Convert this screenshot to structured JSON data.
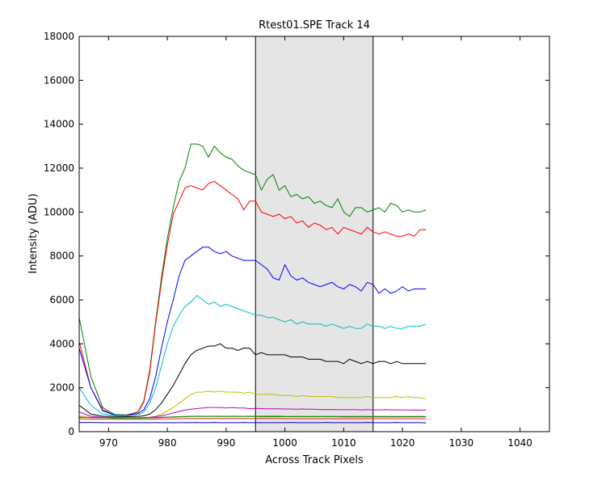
{
  "chart_data": {
    "type": "line",
    "title": "Rtest01.SPE   Track 14",
    "xlabel": "Across Track Pixels",
    "ylabel": "Intensity (ADU)",
    "xlim": [
      965,
      1045
    ],
    "ylim": [
      0,
      18000
    ],
    "xticks": [
      970,
      980,
      990,
      1000,
      1010,
      1020,
      1030,
      1040
    ],
    "yticks": [
      0,
      2000,
      4000,
      6000,
      8000,
      10000,
      12000,
      14000,
      16000,
      18000
    ],
    "grid": false,
    "legend": "none",
    "highlight_band": {
      "x0": 995,
      "x1": 1015,
      "color": "#e5e5e5"
    },
    "x": [
      965,
      967,
      969,
      971,
      973,
      975,
      976,
      977,
      978,
      979,
      980,
      981,
      982,
      983,
      984,
      985,
      986,
      987,
      988,
      989,
      990,
      991,
      992,
      993,
      994,
      995,
      996,
      997,
      998,
      999,
      1000,
      1001,
      1002,
      1003,
      1004,
      1005,
      1006,
      1007,
      1008,
      1009,
      1010,
      1011,
      1012,
      1013,
      1014,
      1015,
      1016,
      1017,
      1018,
      1019,
      1020,
      1021,
      1022,
      1023,
      1024
    ],
    "series": [
      {
        "color": "#008000",
        "values": [
          5200,
          2500,
          1100,
          780,
          760,
          900,
          1400,
          2800,
          5000,
          7000,
          8800,
          10200,
          11400,
          12000,
          13100,
          13100,
          13000,
          12500,
          13000,
          12700,
          12500,
          12400,
          12100,
          11900,
          11800,
          11700,
          11000,
          11500,
          11700,
          11000,
          11200,
          10700,
          10800,
          10600,
          10700,
          10400,
          10500,
          10300,
          10200,
          10600,
          10000,
          9800,
          10200,
          10200,
          10000,
          10100,
          10200,
          10000,
          10400,
          10300,
          10000,
          10100,
          10000,
          10000,
          10100
        ]
      },
      {
        "color": "#ff0000",
        "values": [
          4100,
          2000,
          1000,
          760,
          740,
          880,
          1350,
          2700,
          4900,
          6800,
          8500,
          9900,
          10500,
          11100,
          11200,
          11100,
          11000,
          11300,
          11400,
          11200,
          11000,
          10800,
          10600,
          10100,
          10500,
          10500,
          10000,
          9900,
          9800,
          9900,
          9700,
          9800,
          9500,
          9600,
          9300,
          9500,
          9400,
          9200,
          9300,
          9000,
          9300,
          9200,
          9100,
          9000,
          9300,
          9100,
          9000,
          9100,
          9000,
          8900,
          8900,
          9000,
          8900,
          9200,
          9200
        ]
      },
      {
        "color": "#0000ff",
        "values": [
          3800,
          2000,
          950,
          760,
          740,
          820,
          1000,
          1500,
          2500,
          3800,
          5000,
          6000,
          7100,
          7800,
          8000,
          8200,
          8400,
          8400,
          8200,
          8100,
          8200,
          8000,
          7900,
          7800,
          7800,
          7800,
          7600,
          7400,
          7000,
          6900,
          7600,
          7100,
          6900,
          7000,
          6800,
          6700,
          6600,
          6700,
          6800,
          6600,
          6500,
          6700,
          6600,
          6400,
          6800,
          6700,
          6300,
          6500,
          6300,
          6400,
          6600,
          6400,
          6500,
          6500,
          6500
        ]
      },
      {
        "color": "#00bfbf",
        "values": [
          2000,
          1200,
          800,
          740,
          720,
          760,
          900,
          1300,
          2000,
          3000,
          4000,
          4800,
          5300,
          5700,
          5900,
          6200,
          6000,
          5800,
          5900,
          5700,
          5800,
          5700,
          5600,
          5500,
          5400,
          5300,
          5300,
          5200,
          5200,
          5100,
          5000,
          5100,
          4900,
          5000,
          4900,
          4900,
          4900,
          4800,
          4900,
          4800,
          4700,
          4800,
          4700,
          4700,
          4900,
          4800,
          4800,
          4700,
          4800,
          4700,
          4700,
          4800,
          4800,
          4800,
          4900
        ]
      },
      {
        "color": "#000000",
        "values": [
          1200,
          800,
          700,
          690,
          680,
          690,
          720,
          800,
          1000,
          1300,
          1700,
          2100,
          2600,
          3100,
          3500,
          3700,
          3800,
          3900,
          3900,
          4000,
          3800,
          3800,
          3700,
          3800,
          3800,
          3500,
          3600,
          3500,
          3500,
          3500,
          3500,
          3400,
          3400,
          3400,
          3300,
          3300,
          3300,
          3200,
          3200,
          3200,
          3100,
          3300,
          3200,
          3100,
          3200,
          3100,
          3200,
          3200,
          3100,
          3200,
          3100,
          3100,
          3100,
          3100,
          3100
        ]
      },
      {
        "color": "#bfbf00",
        "values": [
          700,
          650,
          640,
          640,
          630,
          630,
          640,
          660,
          700,
          800,
          950,
          1100,
          1300,
          1500,
          1700,
          1800,
          1800,
          1850,
          1800,
          1850,
          1800,
          1800,
          1800,
          1750,
          1800,
          1700,
          1700,
          1700,
          1700,
          1650,
          1650,
          1650,
          1600,
          1650,
          1600,
          1600,
          1600,
          1600,
          1600,
          1550,
          1550,
          1550,
          1550,
          1550,
          1600,
          1550,
          1550,
          1550,
          1550,
          1600,
          1550,
          1600,
          1550,
          1550,
          1500
        ]
      },
      {
        "color": "#bf00bf",
        "values": [
          900,
          700,
          650,
          640,
          630,
          630,
          640,
          650,
          680,
          720,
          780,
          850,
          920,
          980,
          1020,
          1050,
          1080,
          1100,
          1100,
          1100,
          1080,
          1100,
          1080,
          1080,
          1050,
          1060,
          1050,
          1040,
          1040,
          1040,
          1030,
          1030,
          1020,
          1030,
          1020,
          1020,
          1000,
          1010,
          1000,
          1000,
          1000,
          1000,
          1000,
          990,
          1000,
          990,
          990,
          1000,
          990,
          990,
          990,
          980,
          990,
          980,
          980
        ]
      },
      {
        "color": "#404040",
        "values": [
          650,
          640,
          630,
          620,
          620,
          620,
          625,
          630,
          640,
          650,
          660,
          670,
          680,
          690,
          700,
          700,
          700,
          700,
          700,
          700,
          700,
          700,
          700,
          700,
          700,
          700,
          700,
          700,
          700,
          700,
          690,
          690,
          690,
          690,
          690,
          690,
          690,
          690,
          690,
          690,
          690,
          690,
          690,
          690,
          690,
          690,
          690,
          690,
          690,
          690,
          690,
          690,
          690,
          690,
          690
        ]
      },
      {
        "color": "#00a000",
        "values": [
          650,
          640,
          630,
          620,
          620,
          620,
          620,
          625,
          630,
          640,
          650,
          660,
          670,
          680,
          690,
          690,
          690,
          690,
          690,
          690,
          690,
          690,
          690,
          690,
          690,
          690,
          680,
          680,
          680,
          680,
          680,
          680,
          680,
          680,
          680,
          680,
          680,
          680,
          680,
          680,
          670,
          670,
          670,
          670,
          670,
          670,
          670,
          670,
          670,
          670,
          670,
          670,
          670,
          670,
          670
        ]
      },
      {
        "color": "#ff2020",
        "values": [
          580,
          570,
          560,
          560,
          560,
          560,
          560,
          565,
          570,
          575,
          580,
          585,
          590,
          595,
          600,
          600,
          600,
          600,
          600,
          600,
          600,
          600,
          600,
          600,
          600,
          600,
          600,
          600,
          600,
          600,
          590,
          590,
          590,
          590,
          590,
          590,
          590,
          590,
          590,
          590,
          590,
          590,
          590,
          590,
          590,
          590,
          590,
          590,
          590,
          590,
          590,
          590,
          590,
          590,
          590
        ]
      },
      {
        "color": "#0000cc",
        "values": [
          420,
          420,
          410,
          410,
          410,
          410,
          410,
          410,
          410,
          410,
          410,
          410,
          410,
          410,
          410,
          420,
          410,
          410,
          420,
          410,
          410,
          410,
          410,
          420,
          410,
          410,
          410,
          410,
          410,
          410,
          410,
          420,
          410,
          410,
          410,
          410,
          410,
          420,
          410,
          410,
          410,
          410,
          410,
          410,
          420,
          410,
          410,
          410,
          410,
          420,
          410,
          410,
          410,
          410,
          400
        ]
      }
    ]
  }
}
